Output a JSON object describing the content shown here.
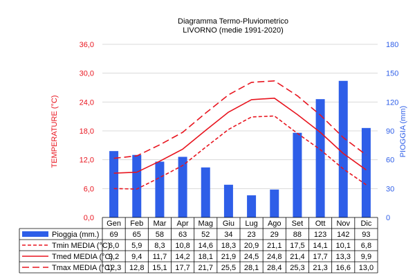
{
  "chart_data": {
    "type": "bar",
    "title": "Diagramma Termo-Pluviometrico",
    "subtitle": "LIVORNO (medie 1991-2020)",
    "ylabel_left": "TEMPERATURE (°C)",
    "ylabel_right": "PIOGGIA (mm)",
    "ylim_left": [
      0,
      36
    ],
    "ylim_right": [
      0,
      180
    ],
    "yticks_left": [
      "0,0",
      "6,0",
      "12,0",
      "18,0",
      "24,0",
      "30,0",
      "36,0"
    ],
    "yticks_right": [
      "0",
      "30",
      "60",
      "90",
      "120",
      "150",
      "180"
    ],
    "grid": true,
    "categories": [
      "Gen",
      "Feb",
      "Mar",
      "Apr",
      "Mag",
      "Giu",
      "Lug",
      "Ago",
      "Set",
      "Ott",
      "Nov",
      "Dic"
    ],
    "series": [
      {
        "name": "Pioggia (mm.)",
        "kind": "bar",
        "axis": "right",
        "color": "#2e5ee8",
        "values": [
          69,
          65,
          58,
          63,
          52,
          34,
          23,
          29,
          88,
          123,
          142,
          93
        ],
        "labels": [
          "69",
          "65",
          "58",
          "63",
          "52",
          "34",
          "23",
          "29",
          "88",
          "123",
          "142",
          "93"
        ]
      },
      {
        "name": "Tmin MEDIA (°C)",
        "kind": "line",
        "axis": "left",
        "style": "dashed-short",
        "color": "#e8141e",
        "values": [
          6.0,
          5.9,
          8.3,
          10.8,
          14.6,
          18.3,
          20.9,
          21.1,
          17.5,
          14.1,
          10.1,
          6.8
        ],
        "labels": [
          "6,0",
          "5,9",
          "8,3",
          "10,8",
          "14,6",
          "18,3",
          "20,9",
          "21,1",
          "17,5",
          "14,1",
          "10,1",
          "6,8"
        ]
      },
      {
        "name": "Tmed MEDIA (°C)",
        "kind": "line",
        "axis": "left",
        "style": "solid",
        "color": "#e8141e",
        "values": [
          9.2,
          9.4,
          11.7,
          14.2,
          18.1,
          21.9,
          24.5,
          24.8,
          21.4,
          17.7,
          13.3,
          9.9
        ],
        "labels": [
          "9,2",
          "9,4",
          "11,7",
          "14,2",
          "18,1",
          "21,9",
          "24,5",
          "24,8",
          "21,4",
          "17,7",
          "13,3",
          "9,9"
        ]
      },
      {
        "name": "Tmax MEDIA (°C)",
        "kind": "line",
        "axis": "left",
        "style": "dashed-long",
        "color": "#e8141e",
        "values": [
          12.3,
          12.8,
          15.1,
          17.7,
          21.7,
          25.5,
          28.1,
          28.4,
          25.3,
          21.3,
          16.6,
          13.0
        ],
        "labels": [
          "12,3",
          "12,8",
          "15,1",
          "17,7",
          "21,7",
          "25,5",
          "28,1",
          "28,4",
          "25,3",
          "21,3",
          "16,6",
          "13,0"
        ]
      }
    ],
    "colors": {
      "left_axis": "#e8141e",
      "right_axis": "#2e5ee8",
      "grid": "#d9d9d9",
      "text": "#000000"
    }
  }
}
